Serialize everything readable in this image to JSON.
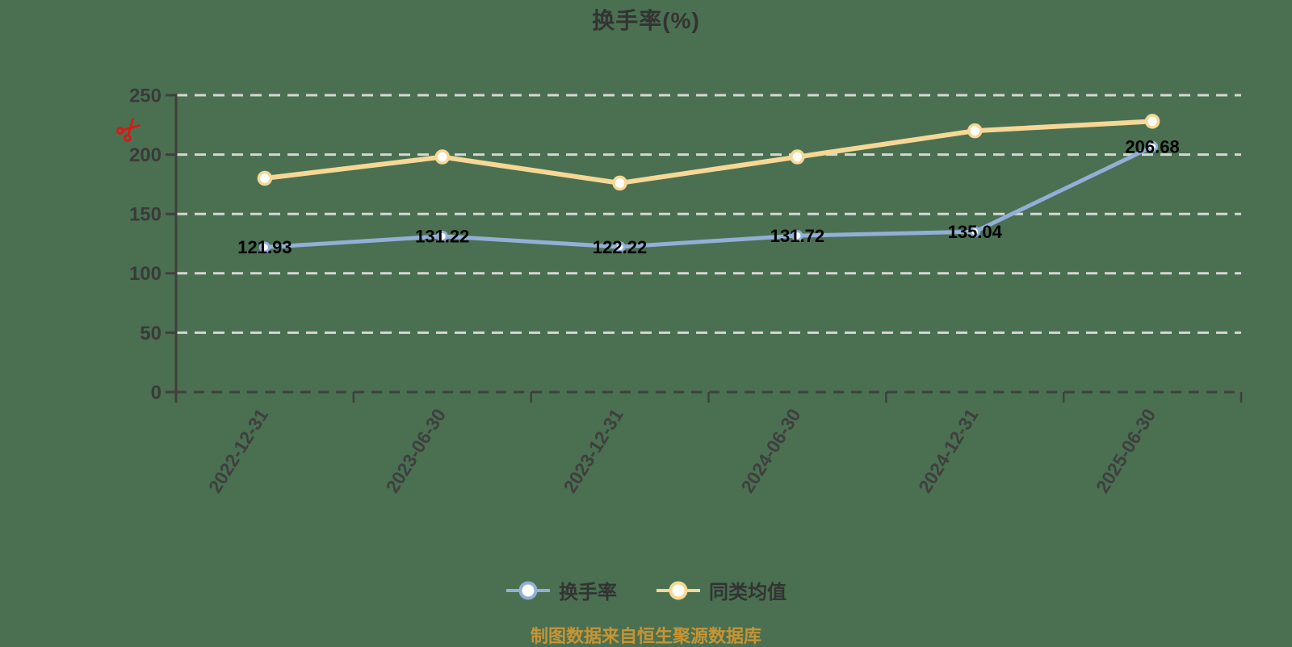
{
  "chart_data": {
    "type": "line",
    "title": "换手率(%)",
    "categories": [
      "2022-12-31",
      "2023-06-30",
      "2023-12-31",
      "2024-06-30",
      "2024-12-31",
      "2025-06-30"
    ],
    "series": [
      {
        "name": "换手率",
        "color": "#92afd8",
        "values": [
          121.93,
          131.22,
          122.22,
          131.72,
          135.04,
          206.68
        ],
        "value_labels_shown": true
      },
      {
        "name": "同类均值",
        "color": "#f7d795",
        "values": [
          180,
          198,
          176,
          198,
          220,
          228
        ],
        "value_labels_shown": false
      }
    ],
    "ylim": [
      0,
      250
    ],
    "y_ticks": [
      0,
      50,
      100,
      150,
      200,
      250
    ],
    "x_label_rotation_deg": -58,
    "grid": "horizontal-dashed",
    "legend_position": "bottom-center",
    "source_note": "制图数据来自恒生聚源数据库"
  },
  "colors": {
    "background": "#4a7051",
    "title_text": "#333333",
    "axis_line": "#3f3f3f",
    "axis_tick_text": "#3a3a3a",
    "gridline": "#d6d6d6",
    "zero_line": "#3f3f3f",
    "value_label_text": "#000000",
    "legend_text": "#333333",
    "marker_fill": "#ffffff",
    "source_note_text": "#c79433",
    "scissors_icon": "#e01414"
  }
}
